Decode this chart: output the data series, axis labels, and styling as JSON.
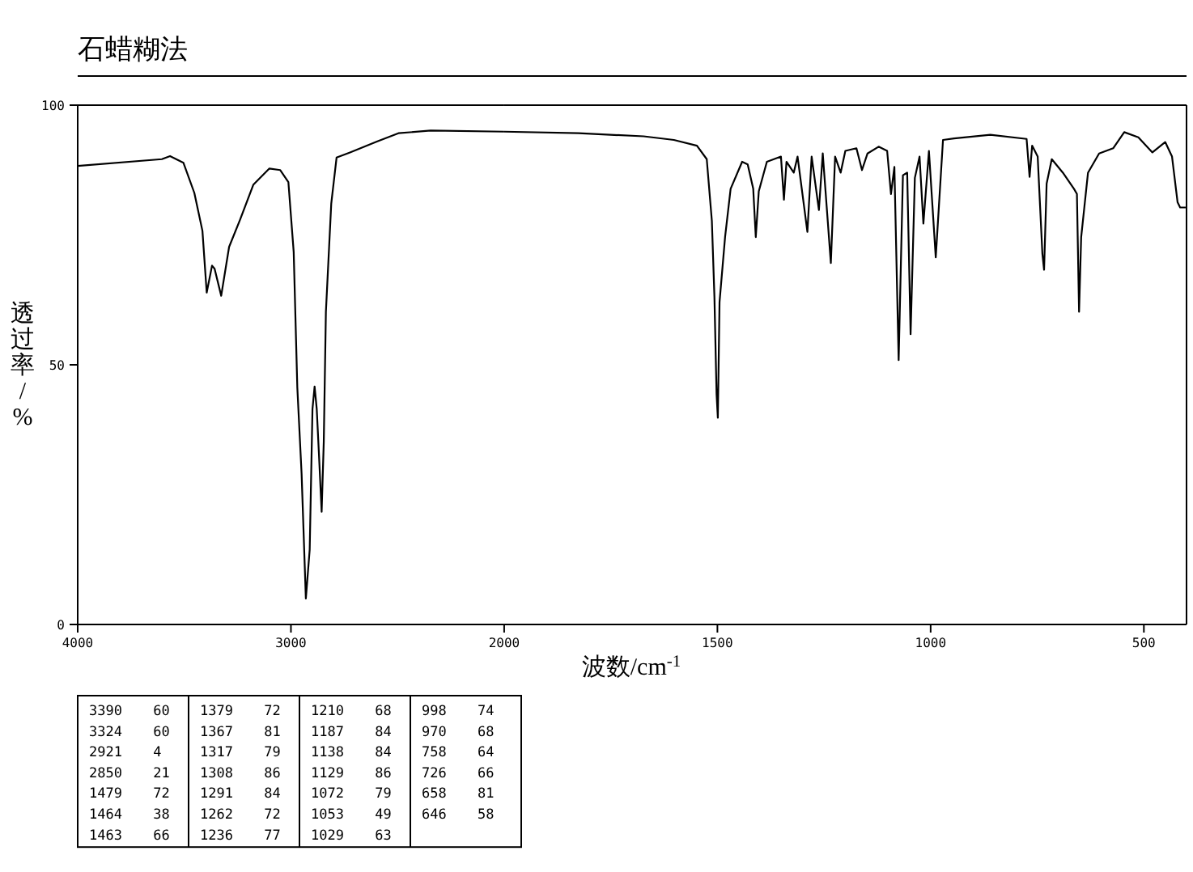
{
  "chart_data": [
    {
      "type": "line",
      "title": "石蜡糊法",
      "ylabel": "透过率/%",
      "color": "#000000",
      "x": [
        4000,
        3605,
        3567,
        3504,
        3453,
        3415,
        3395,
        3370,
        3358,
        3327,
        3290,
        3239,
        3176,
        3101,
        3050,
        3012,
        2987,
        2970,
        2950,
        2930,
        2912,
        2899,
        2889,
        2879,
        2869,
        2856,
        2846,
        2836,
        2811,
        2786,
        2723,
        2597,
        2496,
        2345,
        2000
      ],
      "values": [
        88.3,
        89.6,
        90.2,
        88.9,
        83.1,
        75.8,
        63.9,
        69.1,
        68.5,
        63.3,
        72.7,
        77.9,
        84.7,
        87.8,
        87.5,
        85.2,
        71.7,
        45.6,
        29.0,
        5.0,
        14.4,
        41.5,
        45.8,
        41.5,
        33.1,
        21.7,
        35.2,
        60.2,
        81.0,
        89.9,
        90.9,
        93.0,
        94.6,
        95.1,
        94.9
      ],
      "xlim": [
        4000,
        2000
      ],
      "ylim": [
        0,
        100
      ],
      "xticks": [
        4000,
        3000,
        2000
      ],
      "yticks": [
        0,
        50,
        100
      ],
      "annotations": [
        "3390 60",
        "3324 60",
        "2921 4",
        "2850 21",
        "1479 72",
        "1464 38",
        "1463 66",
        "1379 72",
        "1367 81",
        "1317 79",
        "1308 86",
        "1291 84",
        "1262 72",
        "1236 77",
        "1210 68",
        "1187 84",
        "1138 84",
        "1129 86",
        "1072 79",
        "1053 49",
        "1029 63",
        "998 74",
        "970 68",
        "758 64",
        "726 66",
        "658 81",
        "646 58"
      ]
    },
    {
      "type": "line",
      "xlabel": "波数/cm$^{-1}$",
      "color": "#000000",
      "tick_labels": "x",
      "x": [
        2000,
        1826,
        1673,
        1602,
        1548,
        1525,
        1513,
        1507,
        1502,
        1499,
        1495,
        1482,
        1469,
        1442,
        1429,
        1416,
        1410,
        1403,
        1384,
        1351,
        1344,
        1338,
        1321,
        1312,
        1289,
        1279,
        1262,
        1253,
        1234,
        1224,
        1211,
        1200,
        1174,
        1161,
        1148,
        1122,
        1102,
        1093,
        1085,
        1075,
        1065,
        1055,
        1047,
        1037,
        1026,
        1017,
        1004,
        988,
        971,
        945,
        860,
        775,
        768,
        762,
        749,
        738,
        734,
        728,
        716,
        690,
        664,
        657,
        652,
        647,
        631,
        605,
        572,
        546,
        513,
        480,
        450,
        434,
        421,
        415,
        402
      ],
      "values": [
        94.9,
        94.6,
        94.0,
        93.3,
        92.2,
        89.6,
        77.7,
        63.1,
        44.4,
        39.8,
        62.1,
        74.6,
        83.9,
        89.1,
        88.6,
        83.9,
        74.6,
        83.4,
        89.1,
        90.1,
        81.8,
        89.1,
        87.0,
        90.1,
        75.6,
        90.1,
        79.8,
        90.7,
        69.6,
        90.1,
        87.0,
        91.2,
        91.7,
        87.5,
        90.7,
        92.0,
        91.2,
        82.9,
        88.1,
        50.9,
        86.5,
        87.0,
        55.9,
        86.0,
        90.1,
        77.2,
        91.2,
        70.7,
        93.3,
        93.6,
        94.3,
        93.5,
        86.2,
        92.2,
        90.1,
        71.4,
        68.3,
        84.9,
        89.6,
        87.0,
        83.9,
        82.9,
        60.2,
        74.6,
        87.0,
        90.7,
        91.7,
        94.8,
        93.8,
        90.9,
        92.9,
        90.1,
        81.3,
        80.3,
        80.3
      ],
      "xlim": [
        2000,
        400
      ],
      "ylim": [
        0,
        100
      ],
      "xticks": [
        1500,
        1000,
        500
      ]
    }
  ]
}
